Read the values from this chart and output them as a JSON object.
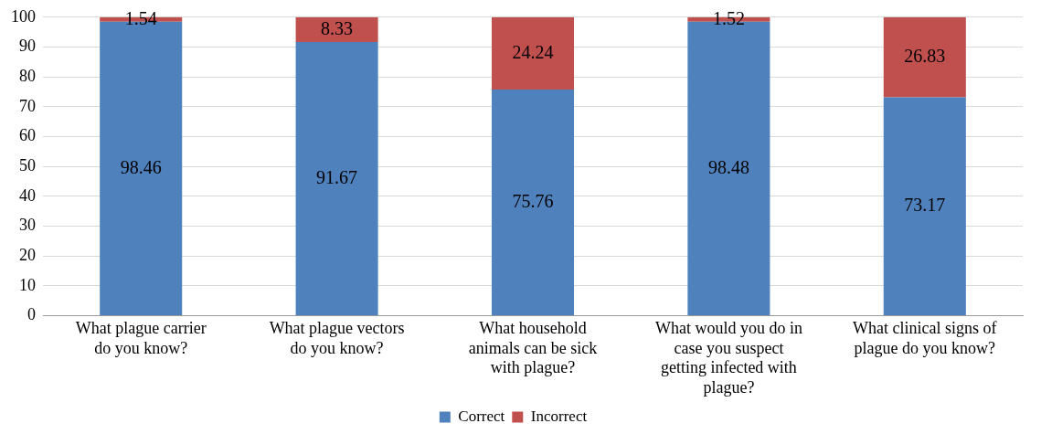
{
  "chart_data": {
    "type": "bar",
    "stacked": true,
    "categories": [
      "What plague carrier do you know?",
      "What plague vectors do you know?",
      "What household animals can be sick with plague?",
      "What would you do in case you suspect getting infected with plague?",
      "What clinical signs of plague do you know?"
    ],
    "series": [
      {
        "name": "Correct",
        "color": "#4f81bd",
        "values": [
          98.46,
          91.67,
          75.76,
          98.48,
          73.17
        ]
      },
      {
        "name": "Incorrect",
        "color": "#c0504d",
        "values": [
          1.54,
          8.33,
          24.24,
          1.52,
          26.83
        ]
      }
    ],
    "ylim": [
      0,
      100
    ],
    "yticks": [
      0,
      10,
      20,
      30,
      40,
      50,
      60,
      70,
      80,
      90,
      100
    ],
    "grid": "y",
    "legend": "bottom",
    "data_labels": true
  }
}
